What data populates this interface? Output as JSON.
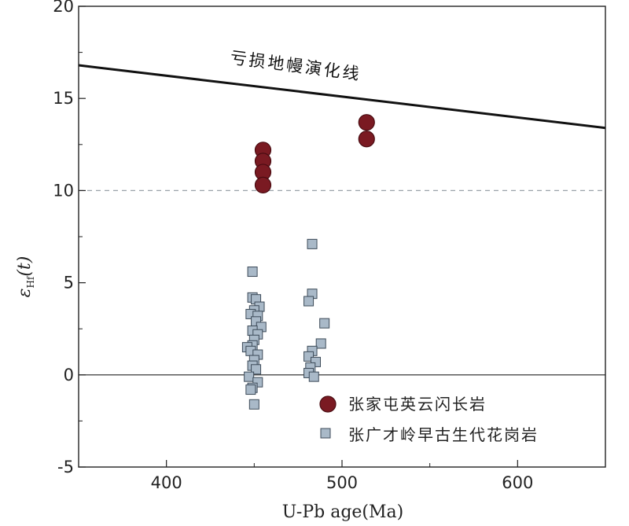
{
  "chart_data": {
    "type": "scatter",
    "title": "",
    "xlabel": "U-Pb age(Ma)",
    "ylabel": {
      "prefix": "ε",
      "subscript": "Hf",
      "suffix": "(t)"
    },
    "xlim": [
      350,
      650
    ],
    "ylim": [
      -5,
      20
    ],
    "xticks": [
      400,
      500,
      600
    ],
    "yticks": [
      -5,
      0,
      5,
      10,
      15,
      20
    ],
    "zero_line_y": 0,
    "dashed_reference_y": 10,
    "depleted_mantle_line": {
      "label": "亏损地幔演化线",
      "x": [
        350,
        650
      ],
      "y": [
        16.8,
        13.4
      ],
      "color": "#111111"
    },
    "series": [
      {
        "name": "张家屯英云闪长岩",
        "marker": "circle",
        "color": "#7a1a22",
        "points": [
          {
            "x": 455,
            "y": 12.2
          },
          {
            "x": 455,
            "y": 11.6
          },
          {
            "x": 455,
            "y": 11.0
          },
          {
            "x": 455,
            "y": 10.3
          },
          {
            "x": 514,
            "y": 13.7
          },
          {
            "x": 514,
            "y": 12.8
          }
        ]
      },
      {
        "name": "张广才岭早古生代花岗岩",
        "marker": "square",
        "color": "#a9b9c8",
        "points": [
          {
            "x": 449,
            "y": 5.6
          },
          {
            "x": 449,
            "y": 4.2
          },
          {
            "x": 451,
            "y": 4.1
          },
          {
            "x": 453,
            "y": 3.7
          },
          {
            "x": 450,
            "y": 3.5
          },
          {
            "x": 448,
            "y": 3.3
          },
          {
            "x": 452,
            "y": 3.2
          },
          {
            "x": 451,
            "y": 2.9
          },
          {
            "x": 454,
            "y": 2.6
          },
          {
            "x": 449,
            "y": 2.4
          },
          {
            "x": 452,
            "y": 2.2
          },
          {
            "x": 450,
            "y": 1.9
          },
          {
            "x": 449,
            "y": 1.6
          },
          {
            "x": 446,
            "y": 1.5
          },
          {
            "x": 448,
            "y": 1.3
          },
          {
            "x": 452,
            "y": 1.1
          },
          {
            "x": 450,
            "y": 0.8
          },
          {
            "x": 449,
            "y": 0.5
          },
          {
            "x": 451,
            "y": 0.3
          },
          {
            "x": 447,
            "y": -0.1
          },
          {
            "x": 452,
            "y": -0.4
          },
          {
            "x": 449,
            "y": -0.7
          },
          {
            "x": 448,
            "y": -0.8
          },
          {
            "x": 450,
            "y": -1.6
          },
          {
            "x": 483,
            "y": 7.1
          },
          {
            "x": 483,
            "y": 4.4
          },
          {
            "x": 481,
            "y": 4.0
          },
          {
            "x": 490,
            "y": 2.8
          },
          {
            "x": 488,
            "y": 1.7
          },
          {
            "x": 483,
            "y": 1.3
          },
          {
            "x": 481,
            "y": 1.0
          },
          {
            "x": 485,
            "y": 0.7
          },
          {
            "x": 482,
            "y": 0.4
          },
          {
            "x": 481,
            "y": 0.1
          },
          {
            "x": 484,
            "y": -0.1
          }
        ]
      }
    ]
  }
}
